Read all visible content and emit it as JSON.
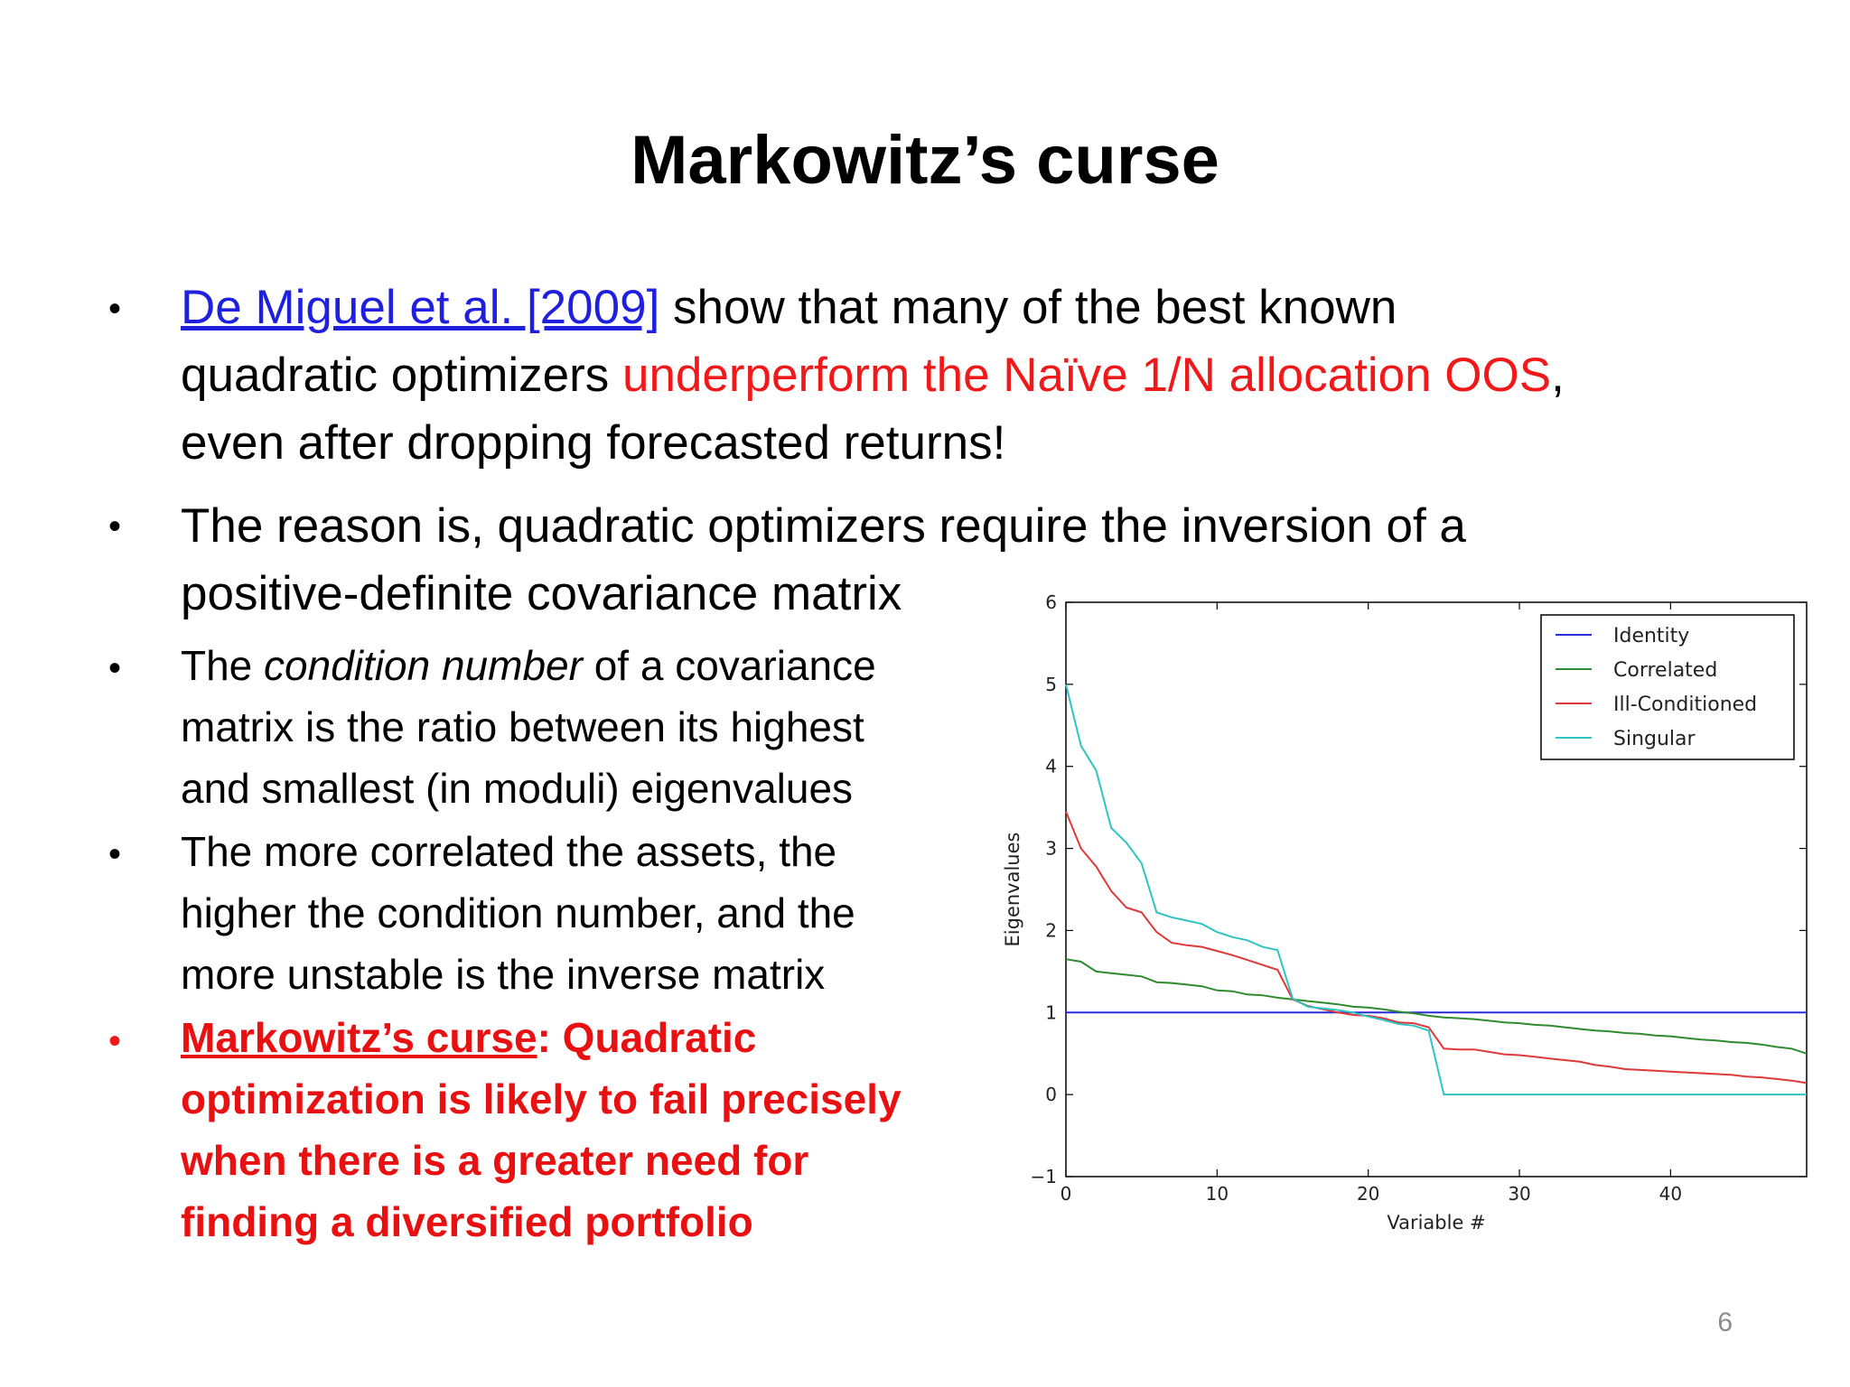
{
  "slide": {
    "title": "Markowitz’s curse",
    "page_number": "6"
  },
  "bullets": {
    "b1": {
      "link": "De Miguel et al. [2009]",
      "t1": " show that many of the best known",
      "t2": "quadratic optimizers ",
      "red": "underperform the Naïve 1/N allocation OOS",
      "t3": ",",
      "t4": "even after dropping forecasted returns!"
    },
    "b2": {
      "l1": "The reason is, quadratic optimizers require the inversion of a",
      "l2": "positive-definite covariance matrix"
    },
    "b3": {
      "pre": "The ",
      "em": "condition number",
      "post": " of a covariance",
      "l2": "matrix is the ratio between its highest",
      "l3": "and smallest (in moduli) eigenvalues"
    },
    "b4": {
      "l1": "The more correlated the assets, the",
      "l2": "higher the condition number, and the",
      "l3": "more unstable is the inverse matrix"
    },
    "b5": {
      "u": "Markowitz’s curse",
      "r1": ": Quadratic",
      "l2": "optimization is likely to fail precisely",
      "l3": "when there is a greater need for",
      "l4": "finding a diversified portfolio"
    },
    "bullet_symbol": "•"
  },
  "chart_data": {
    "type": "line",
    "title": "",
    "xlabel": "Variable #",
    "ylabel": "Eigenvalues",
    "xlim": [
      0,
      49
    ],
    "ylim": [
      -1,
      6
    ],
    "xticks": [
      0,
      10,
      20,
      30,
      40
    ],
    "yticks": [
      -1,
      0,
      1,
      2,
      3,
      4,
      5,
      6
    ],
    "grid": false,
    "legend_position": "top-right",
    "series": [
      {
        "name": "Identity",
        "color": "#2a2ad8",
        "x": [
          0,
          49
        ],
        "y": [
          1.0,
          1.0
        ]
      },
      {
        "name": "Correlated",
        "color": "#2e8b2e",
        "x": [
          0,
          1,
          2,
          3,
          4,
          5,
          6,
          7,
          8,
          9,
          10,
          11,
          12,
          13,
          14,
          15,
          16,
          17,
          18,
          19,
          20,
          21,
          22,
          23,
          24,
          25,
          26,
          27,
          28,
          29,
          30,
          31,
          32,
          33,
          34,
          35,
          36,
          37,
          38,
          39,
          40,
          41,
          42,
          43,
          44,
          45,
          46,
          47,
          48,
          49
        ],
        "y": [
          1.65,
          1.62,
          1.5,
          1.48,
          1.46,
          1.44,
          1.37,
          1.36,
          1.34,
          1.32,
          1.27,
          1.26,
          1.22,
          1.21,
          1.18,
          1.16,
          1.14,
          1.12,
          1.1,
          1.07,
          1.06,
          1.04,
          1.01,
          0.99,
          0.96,
          0.94,
          0.93,
          0.92,
          0.9,
          0.88,
          0.87,
          0.85,
          0.84,
          0.82,
          0.8,
          0.78,
          0.77,
          0.75,
          0.74,
          0.72,
          0.71,
          0.69,
          0.67,
          0.66,
          0.64,
          0.63,
          0.61,
          0.58,
          0.56,
          0.5
        ]
      },
      {
        "name": "Ill-Conditioned",
        "color": "#e03838",
        "x": [
          0,
          1,
          2,
          3,
          4,
          5,
          6,
          7,
          8,
          9,
          10,
          11,
          12,
          13,
          14,
          15,
          16,
          17,
          18,
          19,
          20,
          21,
          22,
          23,
          24,
          25,
          26,
          27,
          28,
          29,
          30,
          31,
          32,
          33,
          34,
          35,
          36,
          37,
          38,
          39,
          40,
          41,
          42,
          43,
          44,
          45,
          46,
          47,
          48,
          49
        ],
        "y": [
          3.45,
          3.0,
          2.78,
          2.48,
          2.28,
          2.22,
          1.98,
          1.85,
          1.82,
          1.8,
          1.75,
          1.7,
          1.64,
          1.58,
          1.52,
          1.16,
          1.08,
          1.04,
          1.0,
          0.97,
          0.96,
          0.93,
          0.88,
          0.87,
          0.82,
          0.56,
          0.55,
          0.55,
          0.52,
          0.49,
          0.48,
          0.46,
          0.44,
          0.42,
          0.4,
          0.36,
          0.34,
          0.31,
          0.3,
          0.29,
          0.28,
          0.27,
          0.26,
          0.25,
          0.24,
          0.22,
          0.21,
          0.19,
          0.17,
          0.14
        ]
      },
      {
        "name": "Singular",
        "color": "#2ec4c4",
        "x": [
          0,
          1,
          2,
          3,
          4,
          5,
          6,
          7,
          8,
          9,
          10,
          11,
          12,
          13,
          14,
          15,
          16,
          17,
          18,
          19,
          20,
          21,
          22,
          23,
          24,
          25,
          26,
          30,
          35,
          40,
          45,
          49
        ],
        "y": [
          5.0,
          4.25,
          3.95,
          3.25,
          3.07,
          2.82,
          2.22,
          2.16,
          2.12,
          2.08,
          1.98,
          1.92,
          1.88,
          1.8,
          1.76,
          1.17,
          1.07,
          1.05,
          1.03,
          1.0,
          0.95,
          0.91,
          0.86,
          0.84,
          0.78,
          0.0,
          0.0,
          0.0,
          0.0,
          0.0,
          0.0,
          0.0
        ]
      }
    ]
  }
}
